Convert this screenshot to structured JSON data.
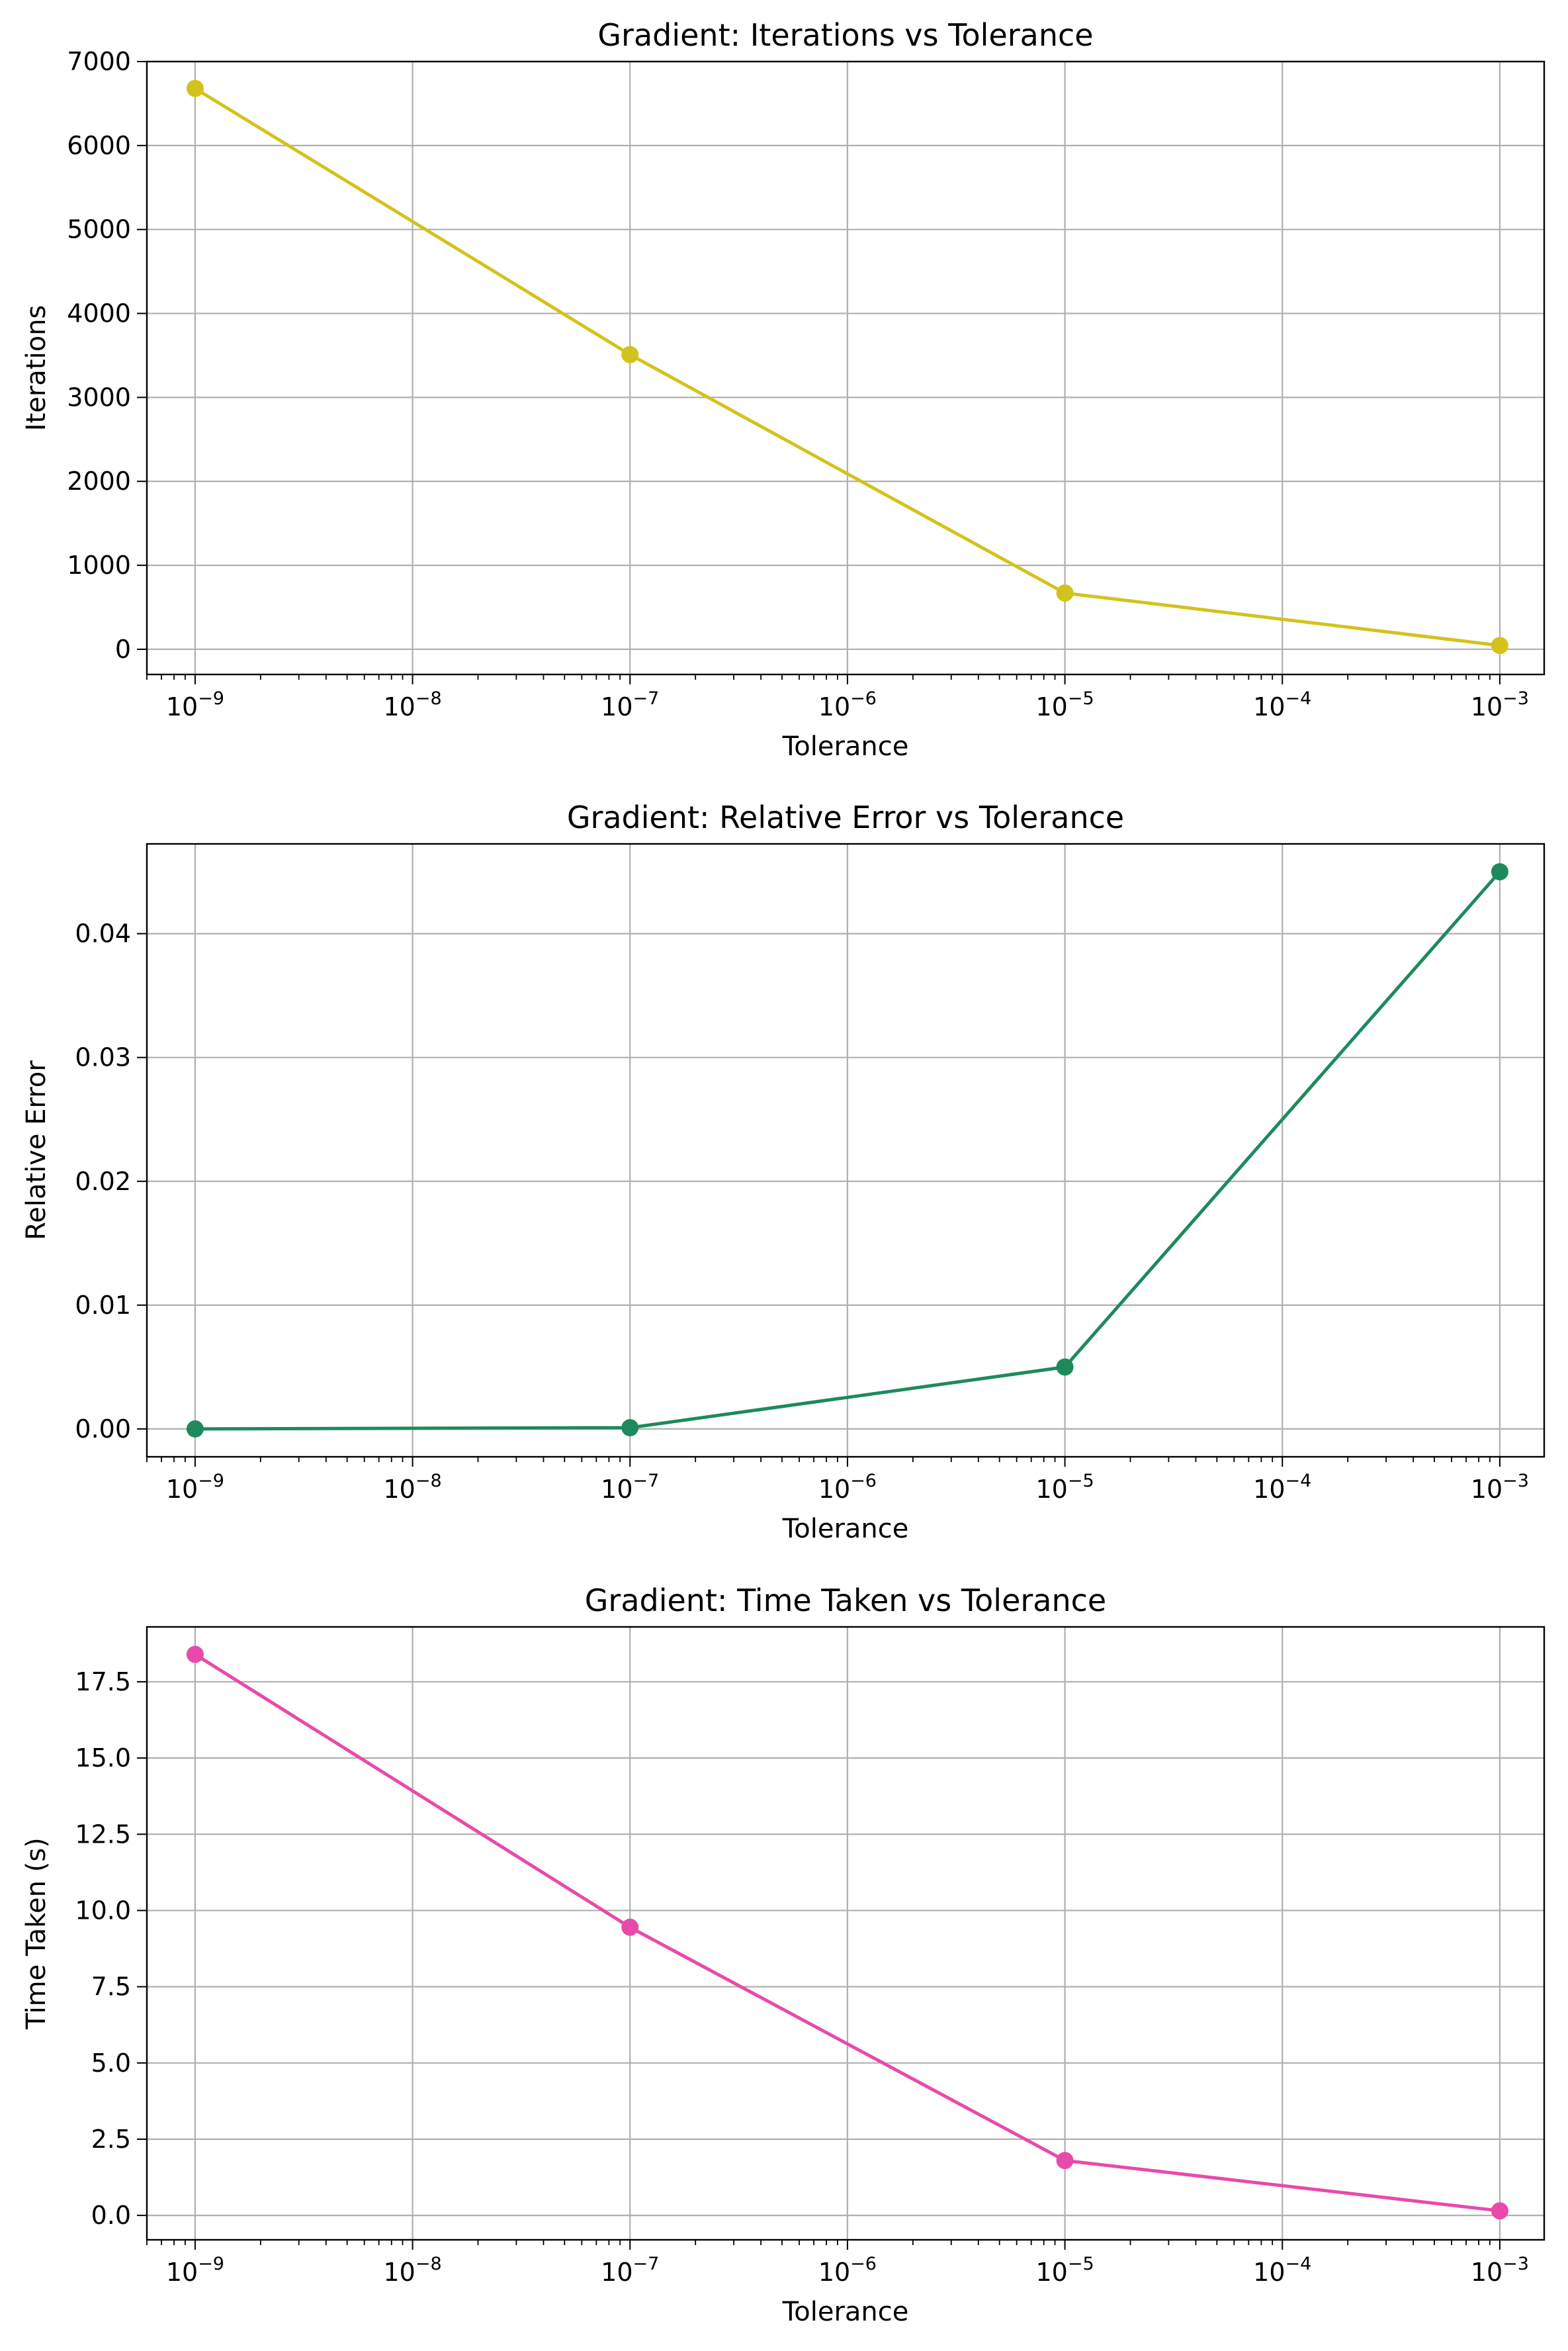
{
  "chart_data": [
    {
      "type": "line",
      "title": "Gradient: Iterations vs Tolerance",
      "xlabel": "Tolerance",
      "ylabel": "Iterations",
      "xscale": "log",
      "xlim": [
        6e-10,
        0.0016
      ],
      "ylim": [
        -300,
        7000
      ],
      "xticks": [
        1e-09,
        1e-08,
        1e-07,
        1e-06,
        1e-05,
        0.0001,
        0.001
      ],
      "xtick_labels": [
        {
          "base": "10",
          "exp": "−9"
        },
        {
          "base": "10",
          "exp": "−8"
        },
        {
          "base": "10",
          "exp": "−7"
        },
        {
          "base": "10",
          "exp": "−6"
        },
        {
          "base": "10",
          "exp": "−5"
        },
        {
          "base": "10",
          "exp": "−4"
        },
        {
          "base": "10",
          "exp": "−3"
        }
      ],
      "yticks": [
        0,
        1000,
        2000,
        3000,
        4000,
        5000,
        6000,
        7000
      ],
      "ytick_labels": [
        "0",
        "1000",
        "2000",
        "3000",
        "4000",
        "5000",
        "6000",
        "7000"
      ],
      "grid": true,
      "color": "#d4c21c",
      "x": [
        1e-09,
        1e-07,
        1e-05,
        0.001
      ],
      "y": [
        6680,
        3510,
        670,
        45
      ]
    },
    {
      "type": "line",
      "title": "Gradient: Relative Error vs Tolerance",
      "xlabel": "Tolerance",
      "ylabel": "Relative Error",
      "xscale": "log",
      "xlim": [
        6e-10,
        0.0016
      ],
      "ylim": [
        -0.00225,
        0.04725
      ],
      "xticks": [
        1e-09,
        1e-08,
        1e-07,
        1e-06,
        1e-05,
        0.0001,
        0.001
      ],
      "xtick_labels": [
        {
          "base": "10",
          "exp": "−9"
        },
        {
          "base": "10",
          "exp": "−8"
        },
        {
          "base": "10",
          "exp": "−7"
        },
        {
          "base": "10",
          "exp": "−6"
        },
        {
          "base": "10",
          "exp": "−5"
        },
        {
          "base": "10",
          "exp": "−4"
        },
        {
          "base": "10",
          "exp": "−3"
        }
      ],
      "yticks": [
        0,
        0.01,
        0.02,
        0.03,
        0.04
      ],
      "ytick_labels": [
        "0.00",
        "0.01",
        "0.02",
        "0.03",
        "0.04"
      ],
      "grid": true,
      "color": "#1e8a5c",
      "x": [
        1e-09,
        1e-07,
        1e-05,
        0.001
      ],
      "y": [
        0.0,
        0.0001,
        0.005,
        0.045
      ]
    },
    {
      "type": "line",
      "title": "Gradient: Time Taken vs Tolerance",
      "xlabel": "Tolerance",
      "ylabel": "Time Taken (s)",
      "xscale": "log",
      "xlim": [
        6e-10,
        0.0016
      ],
      "ylim": [
        -0.8,
        19.3
      ],
      "xticks": [
        1e-09,
        1e-08,
        1e-07,
        1e-06,
        1e-05,
        0.0001,
        0.001
      ],
      "xtick_labels": [
        {
          "base": "10",
          "exp": "−9"
        },
        {
          "base": "10",
          "exp": "−8"
        },
        {
          "base": "10",
          "exp": "−7"
        },
        {
          "base": "10",
          "exp": "−6"
        },
        {
          "base": "10",
          "exp": "−5"
        },
        {
          "base": "10",
          "exp": "−4"
        },
        {
          "base": "10",
          "exp": "−3"
        }
      ],
      "yticks": [
        0,
        2.5,
        5,
        7.5,
        10,
        12.5,
        15,
        17.5
      ],
      "ytick_labels": [
        "0.0",
        "2.5",
        "5.0",
        "7.5",
        "10.0",
        "12.5",
        "15.0",
        "17.5"
      ],
      "grid": true,
      "color": "#e84aab",
      "x": [
        1e-09,
        1e-07,
        1e-05,
        0.001
      ],
      "y": [
        18.4,
        9.45,
        1.8,
        0.15
      ]
    }
  ]
}
